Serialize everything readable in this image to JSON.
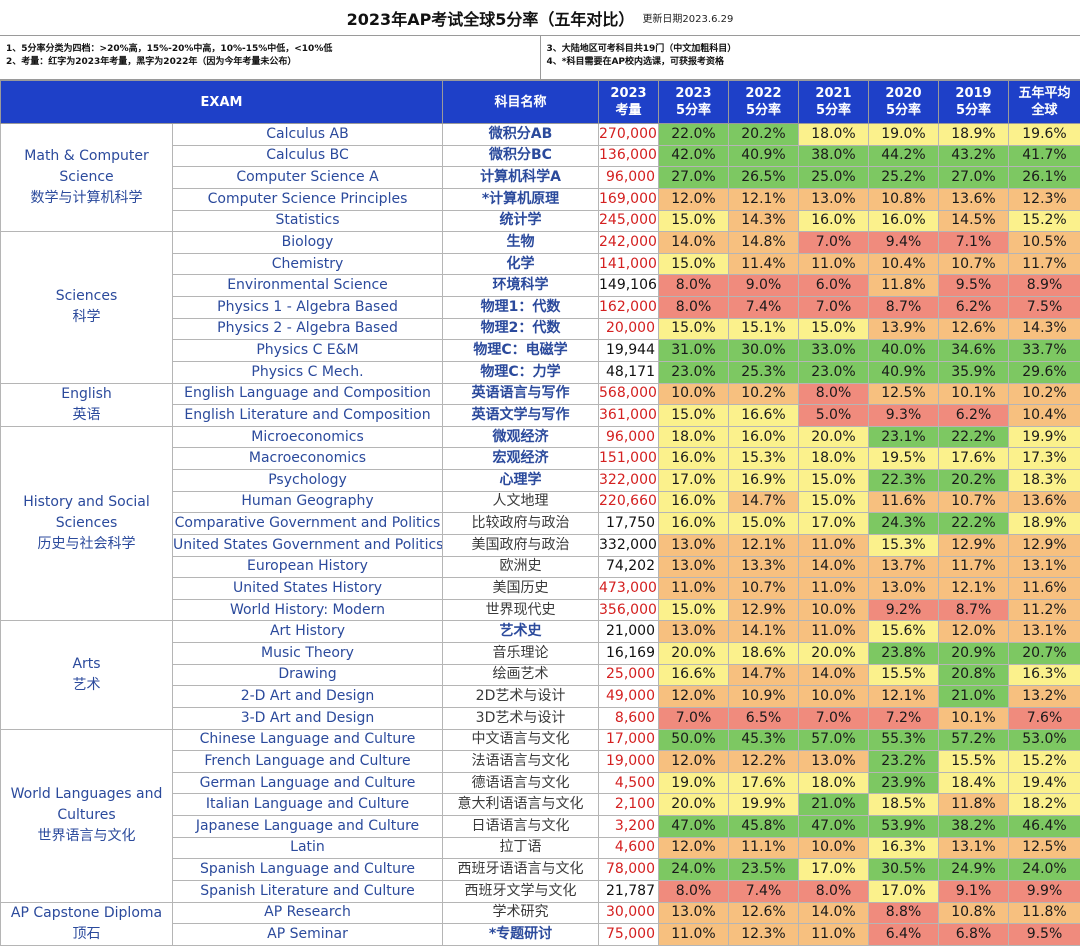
{
  "title": "2023年AP考试全球5分率（五年对比）",
  "updated": "更新日期2023.6.29",
  "notes_left": [
    "1、5分率分类为四档：>20%高，15%-20%中高，10%-15%中低，<10%低",
    "2、考量：红字为2023年考量，黑字为2022年（因为今年考量未公布）"
  ],
  "notes_right": [
    "3、大陆地区可考科目共19门（中文加粗科目）",
    "4、*科目需要在AP校内选课，可获报考资格"
  ],
  "headers": {
    "exam": "EXAM",
    "cn": "科目名称",
    "vol_year": "2023",
    "vol_label": "考量",
    "years": [
      "2023",
      "2022",
      "2021",
      "2020",
      "2019"
    ],
    "rate_label": "5分率",
    "avg_line1": "五年平均",
    "avg_line2": "全球"
  },
  "colors": {
    "header_bg": "#1e40c8",
    "high": "#7dc862",
    "mid_high": "#fbf18c",
    "mid_low": "#f7c07f",
    "low": "#f08b7d",
    "volume_2023": "#d42020",
    "volume_2022": "#111111"
  },
  "groups": [
    {
      "name_en": "Math & Computer Science",
      "name_cn": "数学与计算机科学",
      "rows": [
        {
          "exam": "Calculus AB",
          "cn": "微积分AB",
          "cn_bold": true,
          "vol": "270,000",
          "vol_red": true,
          "rates": [
            "22.0%",
            "20.2%",
            "18.0%",
            "19.0%",
            "18.9%"
          ],
          "avg": "19.6%"
        },
        {
          "exam": "Calculus BC",
          "cn": "微积分BC",
          "cn_bold": true,
          "vol": "136,000",
          "vol_red": true,
          "rates": [
            "42.0%",
            "40.9%",
            "38.0%",
            "44.2%",
            "43.2%"
          ],
          "avg": "41.7%"
        },
        {
          "exam": "Computer Science A",
          "cn": "计算机科学A",
          "cn_bold": true,
          "vol": "96,000",
          "vol_red": true,
          "rates": [
            "27.0%",
            "26.5%",
            "25.0%",
            "25.2%",
            "27.0%"
          ],
          "avg": "26.1%"
        },
        {
          "exam": "Computer Science Principles",
          "cn": "*计算机原理",
          "cn_bold": true,
          "vol": "169,000",
          "vol_red": true,
          "rates": [
            "12.0%",
            "12.1%",
            "13.0%",
            "10.8%",
            "13.6%"
          ],
          "avg": "12.3%"
        },
        {
          "exam": "Statistics",
          "cn": "统计学",
          "cn_bold": true,
          "vol": "245,000",
          "vol_red": true,
          "rates": [
            "15.0%",
            "14.3%",
            "16.0%",
            "16.0%",
            "14.5%"
          ],
          "avg": "15.2%"
        }
      ]
    },
    {
      "name_en": "Sciences",
      "name_cn": "科学",
      "rows": [
        {
          "exam": "Biology",
          "cn": "生物",
          "cn_bold": true,
          "vol": "242,000",
          "vol_red": true,
          "rates": [
            "14.0%",
            "14.8%",
            "7.0%",
            "9.4%",
            "7.1%"
          ],
          "avg": "10.5%"
        },
        {
          "exam": "Chemistry",
          "cn": "化学",
          "cn_bold": true,
          "vol": "141,000",
          "vol_red": true,
          "rates": [
            "15.0%",
            "11.4%",
            "11.0%",
            "10.4%",
            "10.7%"
          ],
          "avg": "11.7%"
        },
        {
          "exam": "Environmental Science",
          "cn": "环境科学",
          "cn_bold": true,
          "vol": "149,106",
          "vol_red": false,
          "rates": [
            "8.0%",
            "9.0%",
            "6.0%",
            "11.8%",
            "9.5%"
          ],
          "avg": "8.9%"
        },
        {
          "exam": "Physics 1 - Algebra Based",
          "cn": "物理1：代数",
          "cn_bold": true,
          "vol": "162,000",
          "vol_red": true,
          "rates": [
            "8.0%",
            "7.4%",
            "7.0%",
            "8.7%",
            "6.2%"
          ],
          "avg": "7.5%"
        },
        {
          "exam": "Physics 2 - Algebra Based",
          "cn": "物理2：代数",
          "cn_bold": true,
          "vol": "20,000",
          "vol_red": true,
          "rates": [
            "15.0%",
            "15.1%",
            "15.0%",
            "13.9%",
            "12.6%"
          ],
          "avg": "14.3%"
        },
        {
          "exam": "Physics C E&M",
          "cn": "物理C：电磁学",
          "cn_bold": true,
          "vol": "19,944",
          "vol_red": false,
          "rates": [
            "31.0%",
            "30.0%",
            "33.0%",
            "40.0%",
            "34.6%"
          ],
          "avg": "33.7%"
        },
        {
          "exam": "Physics C Mech.",
          "cn": "物理C：力学",
          "cn_bold": true,
          "vol": "48,171",
          "vol_red": false,
          "rates": [
            "23.0%",
            "25.3%",
            "23.0%",
            "40.9%",
            "35.9%"
          ],
          "avg": "29.6%"
        }
      ]
    },
    {
      "name_en": "English",
      "name_cn": "英语",
      "rows": [
        {
          "exam": "English Language and Composition",
          "cn": "英语语言与写作",
          "cn_bold": true,
          "vol": "568,000",
          "vol_red": true,
          "rates": [
            "10.0%",
            "10.2%",
            "8.0%",
            "12.5%",
            "10.1%"
          ],
          "avg": "10.2%"
        },
        {
          "exam": "English Literature and Composition",
          "cn": "英语文学与写作",
          "cn_bold": true,
          "vol": "361,000",
          "vol_red": true,
          "rates": [
            "15.0%",
            "16.6%",
            "5.0%",
            "9.3%",
            "6.2%"
          ],
          "avg": "10.4%"
        }
      ]
    },
    {
      "name_en": "History and Social Sciences",
      "name_cn": "历史与社会科学",
      "rows": [
        {
          "exam": "Microeconomics",
          "cn": "微观经济",
          "cn_bold": true,
          "vol": "96,000",
          "vol_red": true,
          "rates": [
            "18.0%",
            "16.0%",
            "20.0%",
            "23.1%",
            "22.2%"
          ],
          "avg": "19.9%"
        },
        {
          "exam": "Macroeconomics",
          "cn": "宏观经济",
          "cn_bold": true,
          "vol": "151,000",
          "vol_red": true,
          "rates": [
            "16.0%",
            "15.3%",
            "18.0%",
            "19.5%",
            "17.6%"
          ],
          "avg": "17.3%"
        },
        {
          "exam": "Psychology",
          "cn": "心理学",
          "cn_bold": true,
          "vol": "322,000",
          "vol_red": true,
          "rates": [
            "17.0%",
            "16.9%",
            "15.0%",
            "22.3%",
            "20.2%"
          ],
          "avg": "18.3%"
        },
        {
          "exam": "Human Geography",
          "cn": "人文地理",
          "cn_bold": false,
          "vol": "220,660",
          "vol_red": true,
          "rates": [
            "16.0%",
            "14.7%",
            "15.0%",
            "11.6%",
            "10.7%"
          ],
          "avg": "13.6%"
        },
        {
          "exam": "Comparative Government and Politics",
          "cn": "比较政府与政治",
          "cn_bold": false,
          "vol": "17,750",
          "vol_red": false,
          "rates": [
            "16.0%",
            "15.0%",
            "17.0%",
            "24.3%",
            "22.2%"
          ],
          "avg": "18.9%"
        },
        {
          "exam": "United States Government and Politics",
          "cn": "美国政府与政治",
          "cn_bold": false,
          "vol": "332,000",
          "vol_red": false,
          "rates": [
            "13.0%",
            "12.1%",
            "11.0%",
            "15.3%",
            "12.9%"
          ],
          "avg": "12.9%"
        },
        {
          "exam": "European History",
          "cn": "欧洲史",
          "cn_bold": false,
          "vol": "74,202",
          "vol_red": false,
          "rates": [
            "13.0%",
            "13.3%",
            "14.0%",
            "13.7%",
            "11.7%"
          ],
          "avg": "13.1%"
        },
        {
          "exam": "United States History",
          "cn": "美国历史",
          "cn_bold": false,
          "vol": "473,000",
          "vol_red": true,
          "rates": [
            "11.0%",
            "10.7%",
            "11.0%",
            "13.0%",
            "12.1%"
          ],
          "avg": "11.6%"
        },
        {
          "exam": "World History: Modern",
          "cn": "世界现代史",
          "cn_bold": false,
          "vol": "356,000",
          "vol_red": true,
          "rates": [
            "15.0%",
            "12.9%",
            "10.0%",
            "9.2%",
            "8.7%"
          ],
          "avg": "11.2%"
        }
      ]
    },
    {
      "name_en": "Arts",
      "name_cn": "艺术",
      "rows": [
        {
          "exam": "Art History",
          "cn": "艺术史",
          "cn_bold": true,
          "vol": "21,000",
          "vol_red": false,
          "rates": [
            "13.0%",
            "14.1%",
            "11.0%",
            "15.6%",
            "12.0%"
          ],
          "avg": "13.1%"
        },
        {
          "exam": "Music Theory",
          "cn": "音乐理论",
          "cn_bold": false,
          "vol": "16,169",
          "vol_red": false,
          "rates": [
            "20.0%",
            "18.6%",
            "20.0%",
            "23.8%",
            "20.9%"
          ],
          "avg": "20.7%"
        },
        {
          "exam": "Drawing",
          "cn": "绘画艺术",
          "cn_bold": false,
          "vol": "25,000",
          "vol_red": true,
          "rates": [
            "16.6%",
            "14.7%",
            "14.0%",
            "15.5%",
            "20.8%"
          ],
          "avg": "16.3%"
        },
        {
          "exam": "2-D Art and Design",
          "cn": "2D艺术与设计",
          "cn_bold": false,
          "vol": "49,000",
          "vol_red": true,
          "rates": [
            "12.0%",
            "10.9%",
            "10.0%",
            "12.1%",
            "21.0%"
          ],
          "avg": "13.2%"
        },
        {
          "exam": "3-D Art and Design",
          "cn": "3D艺术与设计",
          "cn_bold": false,
          "vol": "8,600",
          "vol_red": true,
          "rates": [
            "7.0%",
            "6.5%",
            "7.0%",
            "7.2%",
            "10.1%"
          ],
          "avg": "7.6%"
        }
      ]
    },
    {
      "name_en": "World Languages and Cultures",
      "name_cn": "世界语言与文化",
      "rows": [
        {
          "exam": "Chinese Language and Culture",
          "cn": "中文语言与文化",
          "cn_bold": false,
          "vol": "17,000",
          "vol_red": true,
          "rates": [
            "50.0%",
            "45.3%",
            "57.0%",
            "55.3%",
            "57.2%"
          ],
          "avg": "53.0%"
        },
        {
          "exam": "French Language and Culture",
          "cn": "法语语言与文化",
          "cn_bold": false,
          "vol": "19,000",
          "vol_red": true,
          "rates": [
            "12.0%",
            "12.2%",
            "13.0%",
            "23.2%",
            "15.5%"
          ],
          "avg": "15.2%"
        },
        {
          "exam": "German Language and Culture",
          "cn": "德语语言与文化",
          "cn_bold": false,
          "vol": "4,500",
          "vol_red": true,
          "rates": [
            "19.0%",
            "17.6%",
            "18.0%",
            "23.9%",
            "18.4%"
          ],
          "avg": "19.4%"
        },
        {
          "exam": "Italian Language and Culture",
          "cn": "意大利语语言与文化",
          "cn_bold": false,
          "vol": "2,100",
          "vol_red": true,
          "rates": [
            "20.0%",
            "19.9%",
            "21.0%",
            "18.5%",
            "11.8%"
          ],
          "avg": "18.2%"
        },
        {
          "exam": "Japanese Language and Culture",
          "cn": "日语语言与文化",
          "cn_bold": false,
          "vol": "3,200",
          "vol_red": true,
          "rates": [
            "47.0%",
            "45.8%",
            "47.0%",
            "53.9%",
            "38.2%"
          ],
          "avg": "46.4%"
        },
        {
          "exam": "Latin",
          "cn": "拉丁语",
          "cn_bold": false,
          "vol": "4,600",
          "vol_red": true,
          "rates": [
            "12.0%",
            "11.1%",
            "10.0%",
            "16.3%",
            "13.1%"
          ],
          "avg": "12.5%"
        },
        {
          "exam": "Spanish Language and Culture",
          "cn": "西班牙语语言与文化",
          "cn_bold": false,
          "vol": "78,000",
          "vol_red": true,
          "rates": [
            "24.0%",
            "23.5%",
            "17.0%",
            "30.5%",
            "24.9%"
          ],
          "avg": "24.0%"
        },
        {
          "exam": "Spanish Literature and Culture",
          "cn": "西班牙文学与文化",
          "cn_bold": false,
          "vol": "21,787",
          "vol_red": false,
          "rates": [
            "8.0%",
            "7.4%",
            "8.0%",
            "17.0%",
            "9.1%"
          ],
          "avg": "9.9%"
        }
      ]
    },
    {
      "name_en": "AP Capstone Diploma",
      "name_cn": "顶石",
      "rows": [
        {
          "exam": "AP Research",
          "cn": "学术研究",
          "cn_bold": false,
          "vol": "30,000",
          "vol_red": true,
          "rates": [
            "13.0%",
            "12.6%",
            "14.0%",
            "8.8%",
            "10.8%"
          ],
          "avg": "11.8%"
        },
        {
          "exam": "AP Seminar",
          "cn": "*专题研讨",
          "cn_bold": true,
          "vol": "75,000",
          "vol_red": true,
          "rates": [
            "11.0%",
            "12.3%",
            "11.0%",
            "6.4%",
            "6.8%"
          ],
          "avg": "9.5%"
        }
      ]
    }
  ]
}
